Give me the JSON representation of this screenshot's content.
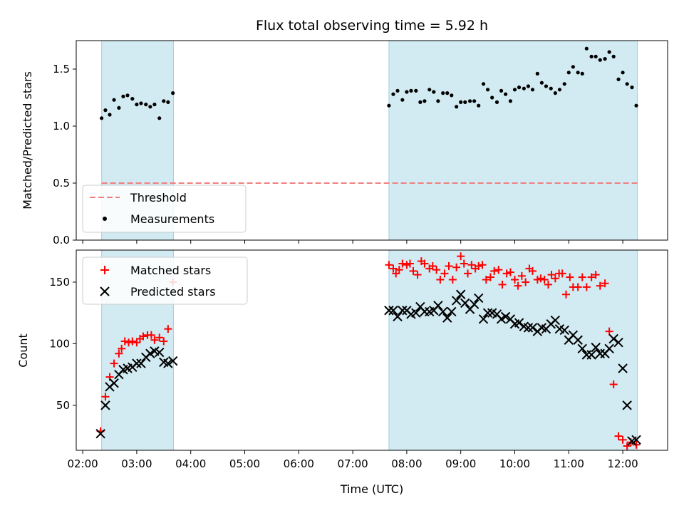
{
  "chart_data": {
    "title": "Flux total observing time = 5.92 h",
    "xlabel": "Time (UTC)",
    "x_ticks": [
      "02:00",
      "03:00",
      "04:00",
      "05:00",
      "06:00",
      "07:00",
      "08:00",
      "09:00",
      "10:00",
      "11:00",
      "12:00"
    ],
    "xlim_hours": [
      1.88,
      12.83
    ],
    "shaded_intervals_hours": [
      [
        2.35,
        3.68
      ],
      [
        7.67,
        12.27
      ]
    ],
    "shade_color": "#add8e6",
    "panels": [
      {
        "type": "scatter",
        "ylabel": "Matched/Predicted stars",
        "ylim": [
          0,
          1.75
        ],
        "y_ticks": [
          "0.0",
          "0.5",
          "1.0",
          "1.5"
        ],
        "legend": {
          "placement": "lower-left"
        },
        "threshold": {
          "name": "Threshold",
          "value": 0.5,
          "color": "#f08080"
        },
        "series": [
          {
            "name": "Measurements",
            "color": "#000000",
            "marker": "dot",
            "x_hours": [
              2.35,
              2.42,
              2.5,
              2.58,
              2.67,
              2.75,
              2.83,
              2.92,
              3.0,
              3.08,
              3.17,
              3.25,
              3.33,
              3.42,
              3.5,
              3.58,
              3.67,
              7.67,
              7.75,
              7.83,
              7.92,
              8.0,
              8.08,
              8.17,
              8.25,
              8.33,
              8.42,
              8.5,
              8.58,
              8.67,
              8.75,
              8.83,
              8.92,
              9.0,
              9.08,
              9.17,
              9.25,
              9.33,
              9.42,
              9.5,
              9.58,
              9.67,
              9.75,
              9.83,
              9.92,
              10.0,
              10.08,
              10.17,
              10.25,
              10.33,
              10.42,
              10.5,
              10.58,
              10.67,
              10.75,
              10.83,
              10.92,
              11.0,
              11.08,
              11.17,
              11.25,
              11.33,
              11.42,
              11.5,
              11.58,
              11.67,
              11.75,
              11.83,
              11.92,
              12.0,
              12.08,
              12.17,
              12.25
            ],
            "y": [
              1.07,
              1.14,
              1.1,
              1.23,
              1.16,
              1.26,
              1.27,
              1.24,
              1.19,
              1.2,
              1.19,
              1.17,
              1.19,
              1.07,
              1.22,
              1.21,
              1.29,
              1.18,
              1.28,
              1.31,
              1.23,
              1.3,
              1.31,
              1.31,
              1.21,
              1.22,
              1.32,
              1.3,
              1.22,
              1.29,
              1.29,
              1.27,
              1.17,
              1.21,
              1.21,
              1.22,
              1.22,
              1.18,
              1.37,
              1.32,
              1.25,
              1.21,
              1.31,
              1.28,
              1.22,
              1.32,
              1.34,
              1.33,
              1.35,
              1.32,
              1.46,
              1.38,
              1.35,
              1.33,
              1.29,
              1.32,
              1.37,
              1.47,
              1.52,
              1.47,
              1.46,
              1.68,
              1.61,
              1.61,
              1.58,
              1.59,
              1.65,
              1.61,
              1.41,
              1.47,
              1.37,
              1.34,
              1.18
            ]
          }
        ]
      },
      {
        "type": "scatter",
        "ylabel": "Count",
        "ylim": [
          13.5,
          176
        ],
        "y_ticks": [
          "50",
          "100",
          "150"
        ],
        "legend": {
          "placement": "top-left"
        },
        "series": [
          {
            "name": "Matched stars",
            "color": "#ff0000",
            "marker": "plus",
            "x_hours": [
              2.33,
              2.42,
              2.5,
              2.58,
              2.67,
              2.72,
              2.78,
              2.85,
              2.92,
              3.0,
              3.06,
              3.12,
              3.2,
              3.27,
              3.33,
              3.42,
              3.5,
              3.58,
              3.67,
              7.67,
              7.75,
              7.8,
              7.86,
              7.92,
              8.0,
              8.06,
              8.12,
              8.2,
              8.27,
              8.33,
              8.42,
              8.48,
              8.55,
              8.62,
              8.7,
              8.78,
              8.85,
              8.92,
              9.0,
              9.06,
              9.13,
              9.2,
              9.27,
              9.33,
              9.4,
              9.47,
              9.55,
              9.62,
              9.7,
              9.77,
              9.85,
              9.92,
              10.0,
              10.06,
              10.13,
              10.2,
              10.27,
              10.33,
              10.42,
              10.48,
              10.55,
              10.62,
              10.68,
              10.75,
              10.82,
              10.88,
              10.95,
              11.02,
              11.08,
              11.17,
              11.25,
              11.33,
              11.42,
              11.5,
              11.58,
              11.67,
              11.75,
              11.83,
              11.92,
              12.0,
              12.08,
              12.15,
              12.25
            ],
            "y": [
              29,
              57,
              73,
              84,
              92,
              96,
              102,
              101,
              102,
              101,
              104,
              106,
              107,
              107,
              103,
              105,
              102,
              112,
              150,
              164,
              161,
              157,
              160,
              165,
              164,
              165,
              159,
              156,
              167,
              165,
              161,
              163,
              160,
              152,
              157,
              163,
              152,
              162,
              171,
              165,
              157,
              164,
              161,
              163,
              164,
              152,
              154,
              159,
              160,
              148,
              157,
              158,
              152,
              147,
              155,
              150,
              161,
              159,
              152,
              153,
              152,
              148,
              156,
              153,
              157,
              157,
              140,
              154,
              146,
              146,
              154,
              146,
              154,
              156,
              147,
              149,
              110,
              67,
              25,
              22,
              17,
              20,
              18
            ],
            "note": ""
          },
          {
            "name": "Predicted stars",
            "color": "#000000",
            "marker": "x",
            "x_hours": [
              2.33,
              2.42,
              2.5,
              2.58,
              2.67,
              2.75,
              2.83,
              2.92,
              3.0,
              3.08,
              3.17,
              3.25,
              3.33,
              3.42,
              3.5,
              3.58,
              3.67,
              7.67,
              7.75,
              7.83,
              7.92,
              8.0,
              8.08,
              8.17,
              8.25,
              8.33,
              8.42,
              8.5,
              8.58,
              8.67,
              8.75,
              8.83,
              8.92,
              9.0,
              9.08,
              9.17,
              9.25,
              9.33,
              9.42,
              9.5,
              9.58,
              9.67,
              9.75,
              9.83,
              9.92,
              10.0,
              10.08,
              10.17,
              10.25,
              10.33,
              10.42,
              10.5,
              10.58,
              10.67,
              10.75,
              10.83,
              10.92,
              11.0,
              11.08,
              11.17,
              11.25,
              11.33,
              11.42,
              11.5,
              11.58,
              11.67,
              11.75,
              11.83,
              11.92,
              12.0,
              12.08,
              12.17,
              12.25
            ],
            "y": [
              27,
              50,
              65,
              68,
              75,
              79,
              80,
              81,
              84,
              84,
              89,
              92,
              94,
              93,
              85,
              84,
              86,
              127,
              127,
              122,
              127,
              127,
              124,
              125,
              130,
              126,
              126,
              127,
              131,
              126,
              121,
              126,
              135,
              140,
              133,
              128,
              132,
              137,
              120,
              125,
              125,
              124,
              120,
              122,
              120,
              116,
              117,
              114,
              113,
              113,
              110,
              113,
              112,
              116,
              119,
              112,
              111,
              103,
              107,
              103,
              96,
              91,
              91,
              97,
              92,
              92,
              96,
              104,
              101,
              80,
              50,
              21,
              22
            ]
          }
        ]
      }
    ]
  }
}
